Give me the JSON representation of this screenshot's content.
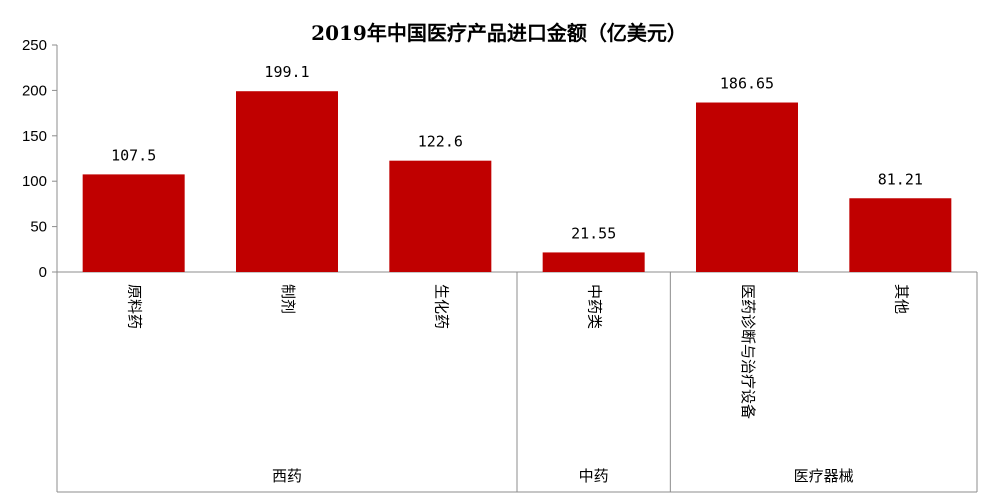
{
  "chart_data": {
    "type": "bar",
    "title": "2019年中国医疗产品进口金额（亿美元）",
    "xlabel": "",
    "ylabel": "",
    "ylim": [
      0,
      250
    ],
    "yticks": [
      "0",
      "50",
      "100",
      "150",
      "200",
      "250"
    ],
    "grid": false,
    "bar_color": "#C00000",
    "categories": [
      "原料药",
      "制剂",
      "生化药",
      "中药类",
      "医药诊断与治疗设备",
      "其他"
    ],
    "values": [
      107.5,
      199.1,
      122.6,
      21.55,
      186.65,
      81.21
    ],
    "value_labels": [
      "107.5",
      "199.1",
      "122.6",
      "21.55",
      "186.65",
      "81.21"
    ],
    "groups": [
      {
        "label": "西药",
        "start": 0,
        "end": 2
      },
      {
        "label": "中药",
        "start": 3,
        "end": 3
      },
      {
        "label": "医疗器械",
        "start": 4,
        "end": 5
      }
    ]
  }
}
